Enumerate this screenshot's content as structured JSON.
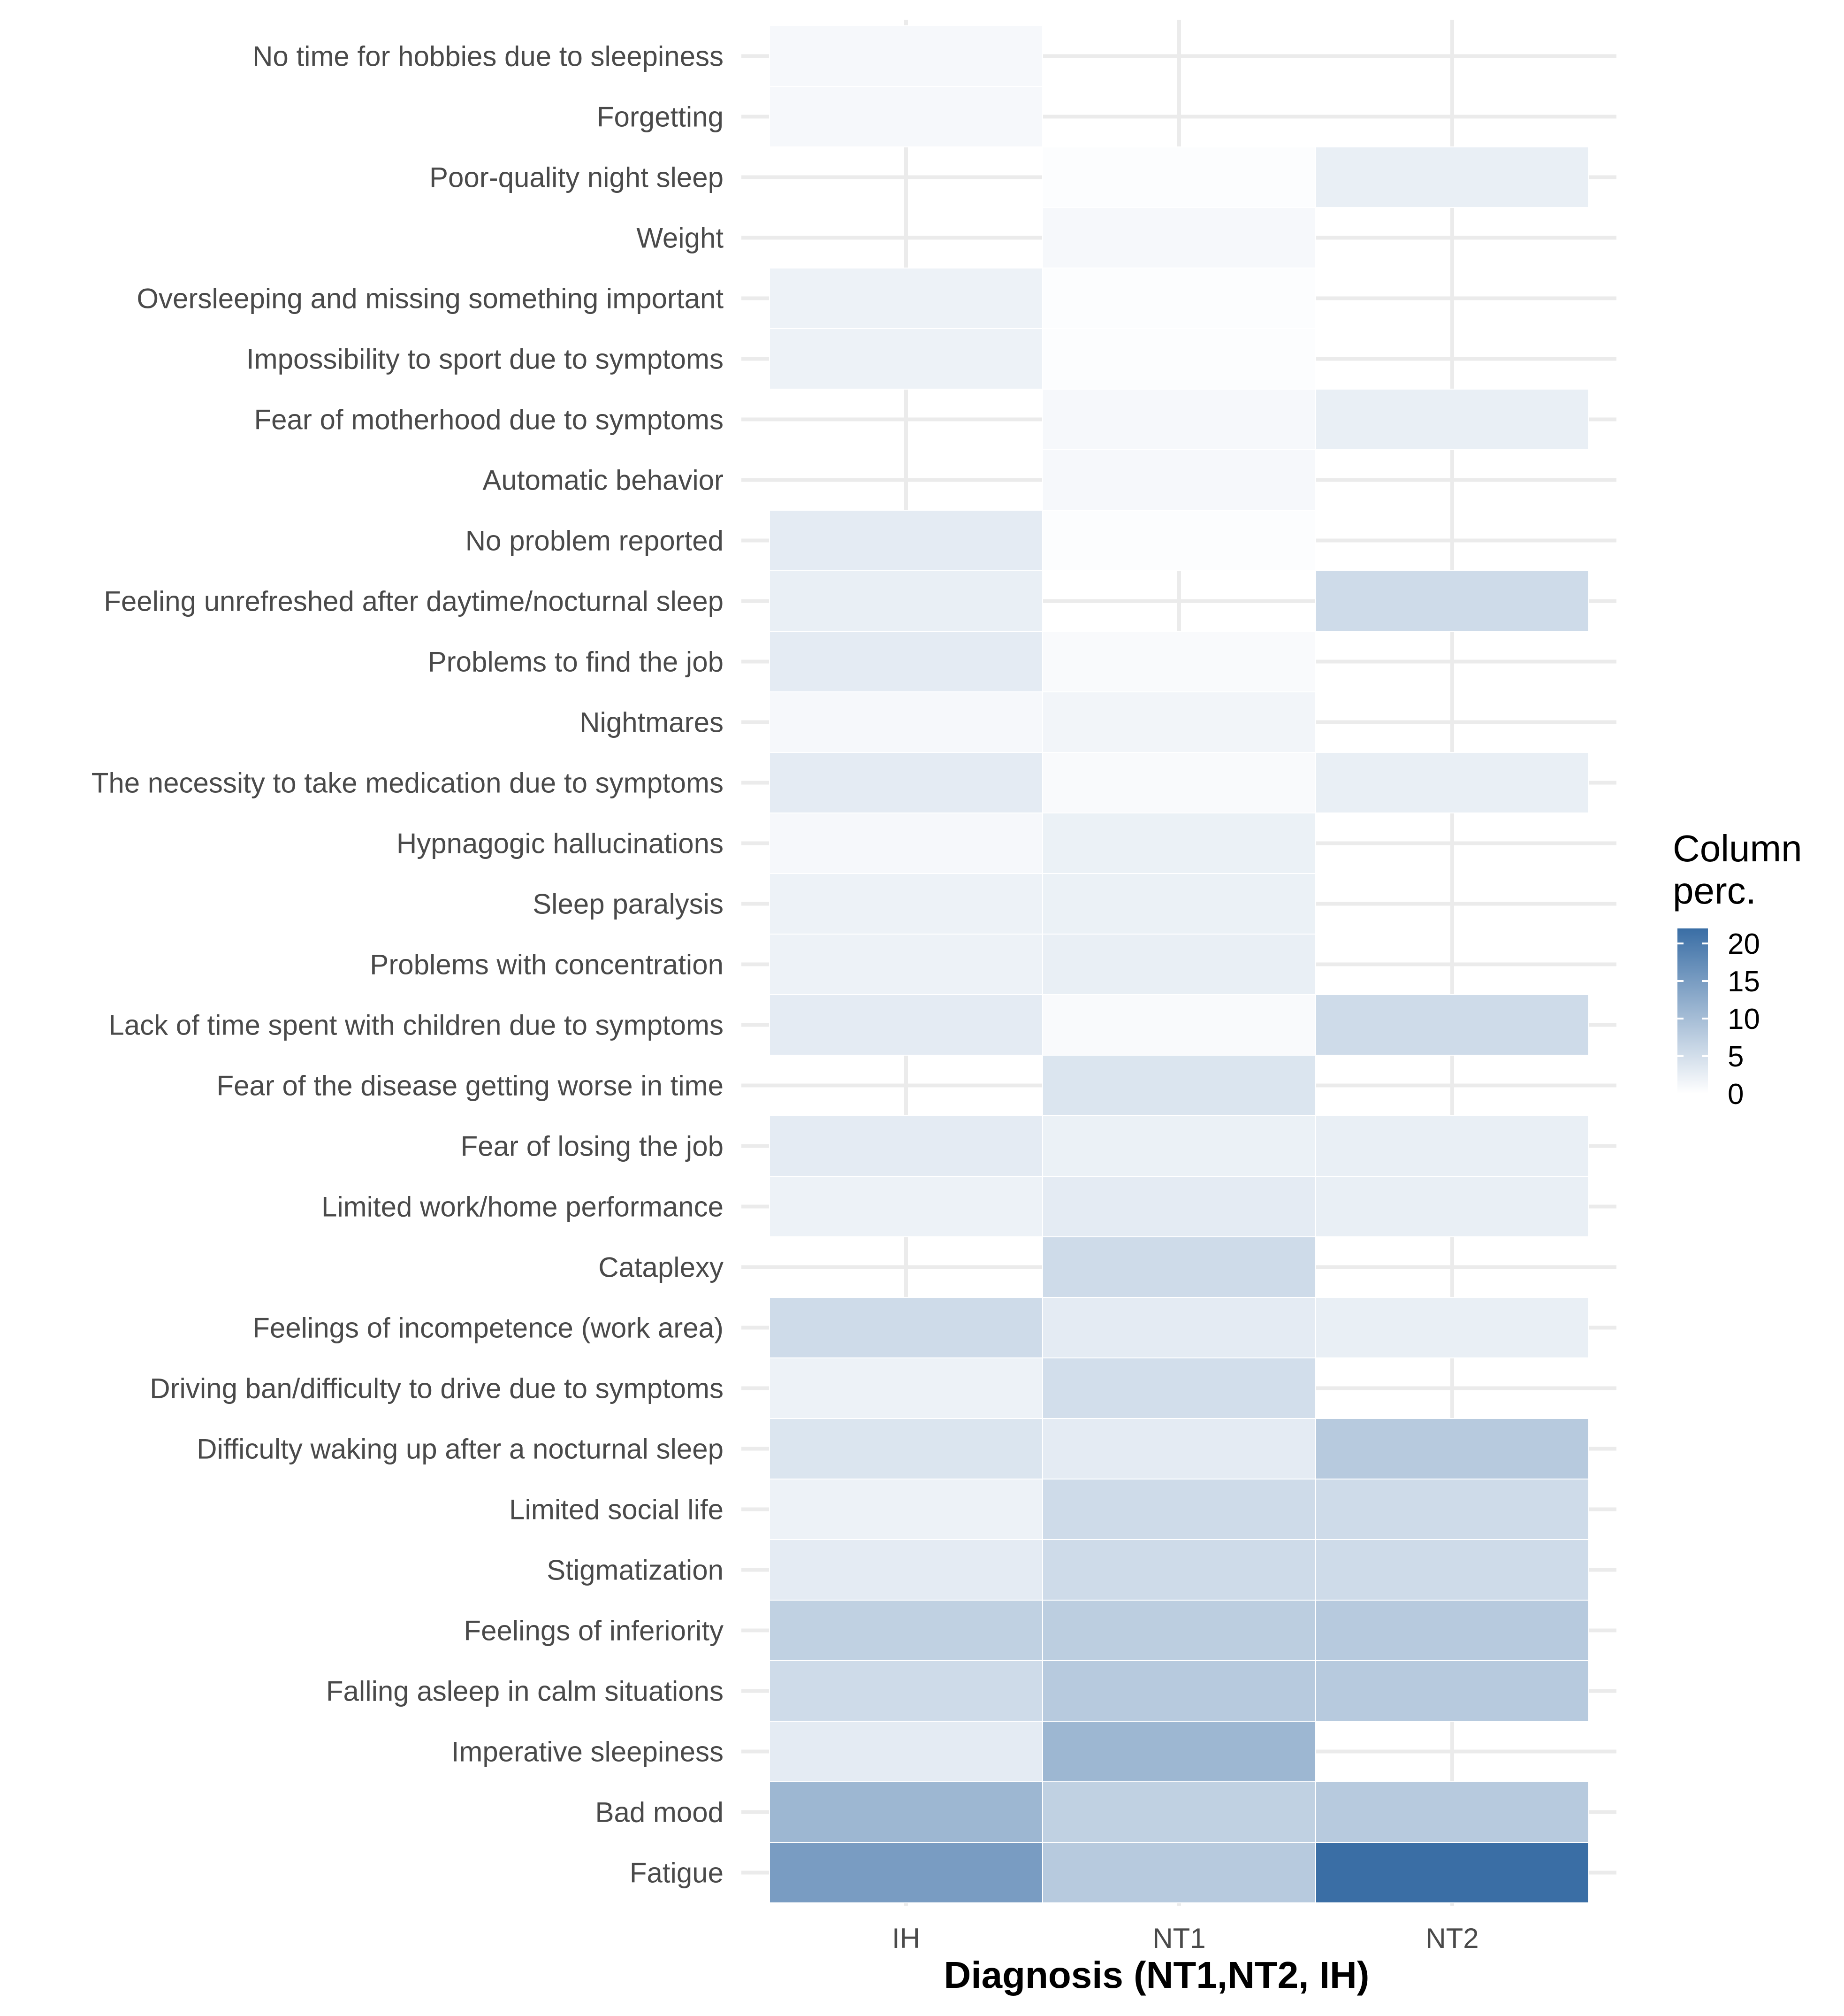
{
  "chart_data": {
    "type": "heatmap",
    "title": "",
    "xlabel": "Diagnosis (NT1,NT2, IH)",
    "ylabel": "",
    "columns": [
      "IH",
      "NT1",
      "NT2"
    ],
    "rows": [
      "No time for hobbies due to sleepiness",
      "Forgetting",
      "Poor-quality night sleep",
      "Weight",
      "Oversleeping and missing something important",
      "Impossibility to sport due to symptoms",
      "Fear of motherhood due to symptoms",
      "Automatic behavior",
      "No problem reported",
      "Feeling unrefreshed after daytime/nocturnal sleep",
      "Problems to find the job",
      "Nightmares",
      "The necessity to take medication due to symptoms",
      "Hypnagogic hallucinations",
      "Sleep paralysis",
      "Problems with concentration",
      "Lack of time spent with children due to symptoms",
      "Fear of the disease getting worse in time",
      "Fear of losing the job",
      "Limited work/home performance",
      "Cataplexy",
      "Feelings of incompetence (work area)",
      "Driving ban/difficulty to drive due to symptoms",
      "Difficulty waking up after a nocturnal sleep",
      "Limited social life",
      "Stigmatization",
      "Feelings of inferiority",
      "Falling asleep in calm situations",
      "Imperative sleepiness",
      "Bad mood",
      "Fatigue"
    ],
    "values": [
      [
        1.0,
        null,
        null
      ],
      [
        1.0,
        null,
        null
      ],
      [
        null,
        0.3,
        2.5
      ],
      [
        null,
        1.0,
        null
      ],
      [
        2.0,
        0.3,
        null
      ],
      [
        2.0,
        0.3,
        null
      ],
      [
        null,
        1.0,
        2.5
      ],
      [
        null,
        1.0,
        null
      ],
      [
        3.0,
        0.3,
        null
      ],
      [
        2.5,
        null,
        5.5
      ],
      [
        3.0,
        0.7,
        null
      ],
      [
        1.0,
        1.5,
        null
      ],
      [
        3.0,
        0.7,
        2.5
      ],
      [
        1.0,
        2.2,
        null
      ],
      [
        2.0,
        2.2,
        null
      ],
      [
        2.0,
        2.5,
        null
      ],
      [
        3.0,
        0.7,
        5.5
      ],
      [
        null,
        4.0,
        null
      ],
      [
        3.0,
        2.2,
        2.5
      ],
      [
        2.0,
        3.0,
        2.5
      ],
      [
        null,
        5.5,
        null
      ],
      [
        5.5,
        3.0,
        2.5
      ],
      [
        2.0,
        5.0,
        null
      ],
      [
        4.0,
        3.0,
        8.0
      ],
      [
        2.0,
        5.5,
        5.5
      ],
      [
        3.0,
        5.5,
        5.5
      ],
      [
        7.0,
        7.5,
        8.0
      ],
      [
        5.5,
        8.0,
        8.0
      ],
      [
        3.0,
        11.0,
        null
      ],
      [
        11.0,
        7.0,
        8.0
      ],
      [
        15.0,
        8.0,
        22.0
      ]
    ],
    "color_scale": {
      "title": "Column perc.",
      "low_color": "#ffffff",
      "high_color": "#3a6ea5",
      "range": [
        0,
        22
      ],
      "ticks": [
        0,
        5,
        10,
        15,
        20
      ]
    },
    "grid": true,
    "legend_position": "right"
  }
}
